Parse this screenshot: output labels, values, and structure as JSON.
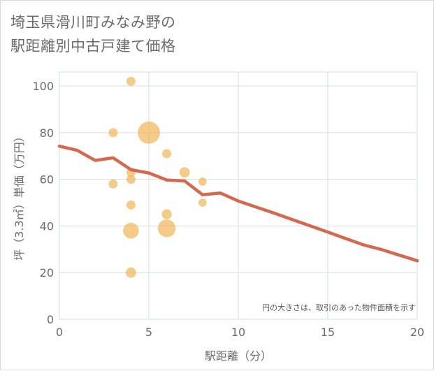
{
  "chart_data": {
    "type": "scatter",
    "title_lines": [
      "埼玉県滑川町みなみ野の",
      "駅距離別中古戸建て価格"
    ],
    "xlabel": "駅距離（分）",
    "ylabel": "坪（3.3㎡）単価（万円）",
    "xlim": [
      0,
      20
    ],
    "ylim": [
      0,
      106
    ],
    "xticks": [
      0,
      5,
      10,
      15,
      20
    ],
    "yticks": [
      0,
      20,
      40,
      60,
      80,
      100
    ],
    "grid": true,
    "note": "円の大きさは、取引のあった物件面積を示す",
    "colors": {
      "bubble": "#f0b75a",
      "line": "#d4694f",
      "grid": "#d5dde5"
    },
    "bubbles": [
      {
        "x": 3,
        "y": 80,
        "size": 1
      },
      {
        "x": 3,
        "y": 58,
        "size": 1
      },
      {
        "x": 4,
        "y": 102,
        "size": 1
      },
      {
        "x": 4,
        "y": 63,
        "size": 1
      },
      {
        "x": 4,
        "y": 60,
        "size": 1
      },
      {
        "x": 4,
        "y": 49,
        "size": 1
      },
      {
        "x": 4,
        "y": 38,
        "size": 3
      },
      {
        "x": 4,
        "y": 20,
        "size": 1.3
      },
      {
        "x": 5,
        "y": 80,
        "size": 6
      },
      {
        "x": 6,
        "y": 71,
        "size": 1
      },
      {
        "x": 6,
        "y": 45,
        "size": 1.2
      },
      {
        "x": 6,
        "y": 39,
        "size": 3.8
      },
      {
        "x": 7,
        "y": 63,
        "size": 1.3
      },
      {
        "x": 8,
        "y": 59,
        "size": 0.8
      },
      {
        "x": 8,
        "y": 50,
        "size": 0.8
      }
    ],
    "trend_line": {
      "x": [
        0,
        1,
        2,
        3,
        4,
        5,
        6,
        7,
        8,
        9,
        10,
        11,
        12,
        13,
        14,
        15,
        16,
        17,
        18,
        19,
        20
      ],
      "y": [
        74.2,
        72.4,
        68.1,
        69.2,
        64.1,
        62.7,
        59.7,
        59.3,
        53.4,
        54.1,
        50.7,
        48.1,
        45.5,
        42.8,
        40.1,
        37.4,
        34.6,
        31.9,
        29.9,
        27.5,
        25.1
      ]
    }
  }
}
